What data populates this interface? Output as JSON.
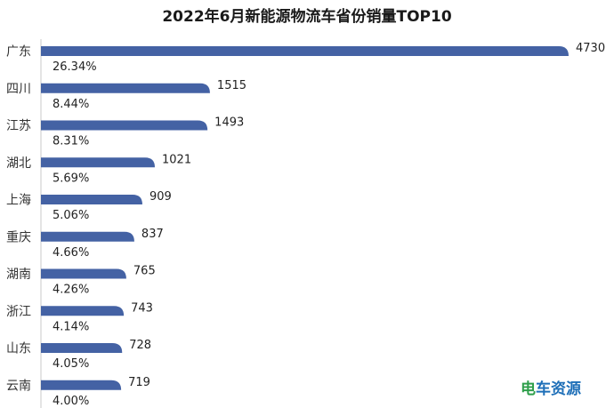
{
  "chart_data": {
    "type": "bar",
    "orientation": "horizontal",
    "title": "2022年6月新能源物流车省份销量TOP10",
    "categories": [
      "广东",
      "四川",
      "江苏",
      "湖北",
      "上海",
      "重庆",
      "湖南",
      "浙江",
      "山东",
      "云南"
    ],
    "values": [
      4730,
      1515,
      1493,
      1021,
      909,
      837,
      765,
      743,
      728,
      719
    ],
    "percentages": [
      "26.34%",
      "8.44%",
      "8.31%",
      "5.69%",
      "5.06%",
      "4.66%",
      "4.26%",
      "4.14%",
      "4.05%",
      "4.00%"
    ],
    "bar_color": "#4462A4",
    "xlabel": "",
    "ylabel": "",
    "grid": false,
    "legend": "none"
  },
  "watermark": {
    "text_1": "电",
    "text_2": "车资源",
    "color_1": "#2E9E4A",
    "color_2": "#1E6FB8"
  }
}
